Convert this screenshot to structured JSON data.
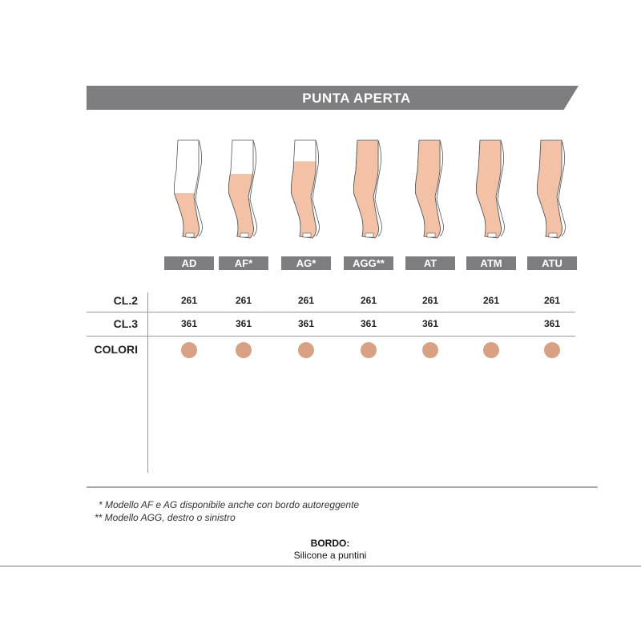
{
  "title": "PUNTA APERTA",
  "models": [
    {
      "code": "AD",
      "cl2": "261",
      "cl3": "361",
      "coverage": 0.55
    },
    {
      "code": "AF*",
      "cl2": "261",
      "cl3": "361",
      "coverage": 0.35
    },
    {
      "code": "AG*",
      "cl2": "261",
      "cl3": "361",
      "coverage": 0.22
    },
    {
      "code": "AGG**",
      "cl2": "261",
      "cl3": "361",
      "coverage": 0
    },
    {
      "code": "AT",
      "cl2": "261",
      "cl3": "361",
      "coverage": 0
    },
    {
      "code": "ATM",
      "cl2": "261",
      "cl3": "",
      "coverage": 0
    },
    {
      "code": "ATU",
      "cl2": "261",
      "cl3": "361",
      "coverage": 0
    }
  ],
  "rows": {
    "cl2": "CL.2",
    "cl3": "CL.3",
    "colori": "COLORI"
  },
  "colors": {
    "header": "#7d7d7f",
    "skin": "#f2c1a6",
    "swatch": "#d9a184"
  },
  "footnotes": [
    "* Modello AF e AG disponibile anche con bordo autoreggente",
    "** Modello AGG, destro o sinistro"
  ],
  "bordo": {
    "label": "BORDO:",
    "value": "Silicone a puntini"
  }
}
